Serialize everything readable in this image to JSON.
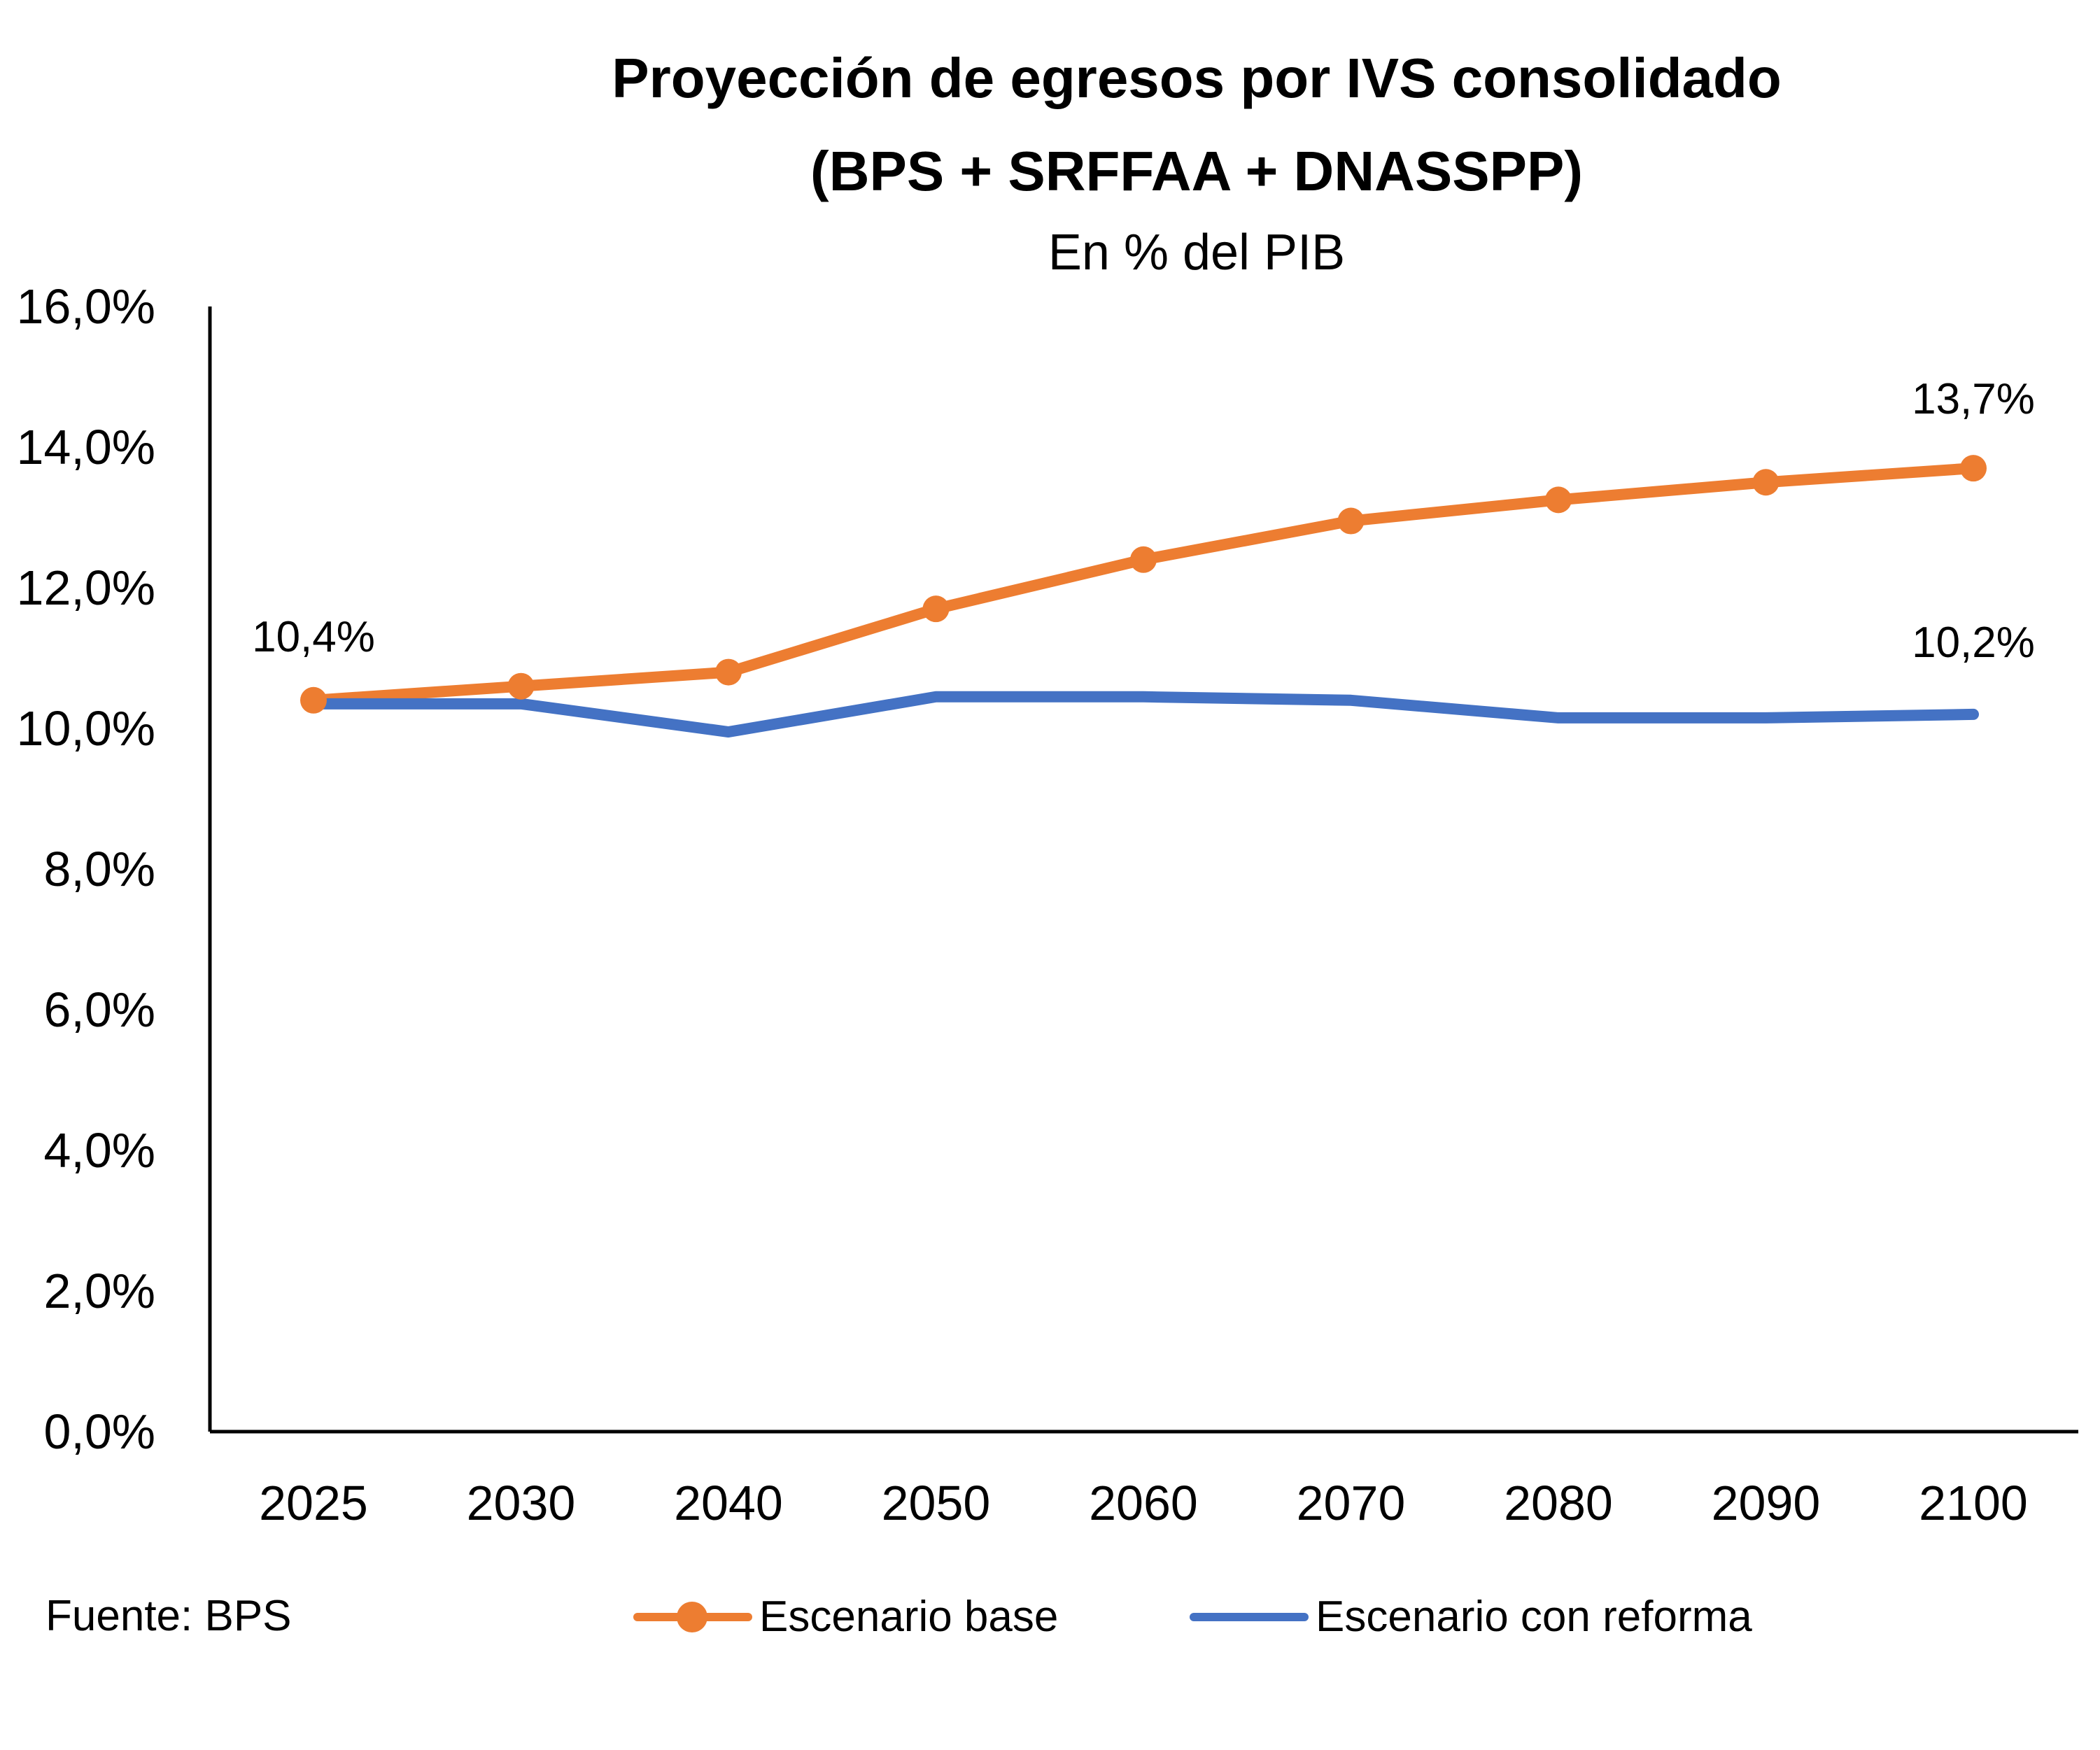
{
  "chart_data": {
    "type": "line",
    "title_line1": "Proyección de egresos por IVS consolidado",
    "title_line2": "(BPS + SRFFAA + DNASSPP)",
    "subtitle": "En % del PIB",
    "categories": [
      "2025",
      "2030",
      "2040",
      "2050",
      "2060",
      "2070",
      "2080",
      "2090",
      "2100"
    ],
    "ylim": [
      0,
      16
    ],
    "y_ticks": [
      "0,0%",
      "2,0%",
      "4,0%",
      "6,0%",
      "8,0%",
      "10,0%",
      "12,0%",
      "14,0%",
      "16,0%"
    ],
    "grid": false,
    "series": [
      {
        "name": "Escenario base",
        "color": "#ED7D31",
        "markers": true,
        "values": [
          10.4,
          10.6,
          10.8,
          11.7,
          12.4,
          12.95,
          13.25,
          13.5,
          13.7
        ]
      },
      {
        "name": "Escenario con reforma",
        "color": "#4472C4",
        "markers": false,
        "values": [
          10.35,
          10.35,
          9.95,
          10.45,
          10.45,
          10.4,
          10.15,
          10.15,
          10.2
        ]
      }
    ],
    "data_labels": [
      {
        "series": 0,
        "index": 0,
        "text": "10,4%"
      },
      {
        "series": 0,
        "index": 8,
        "text": "13,7%"
      },
      {
        "series": 1,
        "index": 8,
        "text": "10,2%"
      }
    ],
    "legend_position": "bottom"
  },
  "source_text": "Fuente: BPS"
}
